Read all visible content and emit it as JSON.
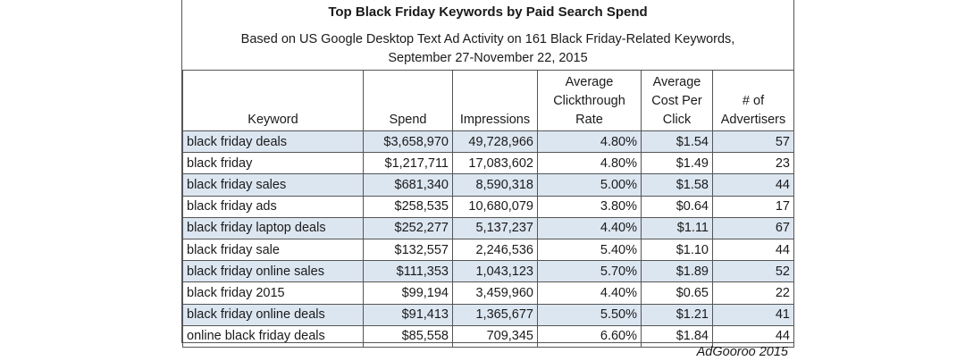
{
  "title": "Top Black Friday Keywords by Paid Search Spend",
  "subtitle_line1": "Based on US Google Desktop Text Ad Activity on 161 Black Friday-Related Keywords,",
  "subtitle_line2": "September 27-November 22, 2015",
  "columns": [
    "Keyword",
    "Spend",
    "Impressions",
    "Average\nClickthrough\nRate",
    "Average\nCost Per\nClick",
    "# of\nAdvertisers"
  ],
  "rows": [
    [
      "black friday deals",
      "$3,658,970",
      "49,728,966",
      "4.80%",
      "$1.54",
      "57"
    ],
    [
      "black friday",
      "$1,217,711",
      "17,083,602",
      "4.80%",
      "$1.49",
      "23"
    ],
    [
      "black friday sales",
      "$681,340",
      "8,590,318",
      "5.00%",
      "$1.58",
      "44"
    ],
    [
      "black friday ads",
      "$258,535",
      "10,680,079",
      "3.80%",
      "$0.64",
      "17"
    ],
    [
      "black friday laptop deals",
      "$252,277",
      "5,137,237",
      "4.40%",
      "$1.11",
      "67"
    ],
    [
      "black friday sale",
      "$132,557",
      "2,246,536",
      "5.40%",
      "$1.10",
      "44"
    ],
    [
      "black friday online sales",
      "$111,353",
      "1,043,123",
      "5.70%",
      "$1.89",
      "52"
    ],
    [
      "black friday 2015",
      "$99,194",
      "3,459,960",
      "4.40%",
      "$0.65",
      "22"
    ],
    [
      "black friday online deals",
      "$91,413",
      "1,365,677",
      "5.50%",
      "$1.21",
      "41"
    ],
    [
      "online black friday deals",
      "$85,558",
      "709,345",
      "6.60%",
      "$1.84",
      "44"
    ]
  ],
  "source": "AdGooroo 2015",
  "colors": {
    "shade": "#dce6f1",
    "border": "#555555"
  }
}
